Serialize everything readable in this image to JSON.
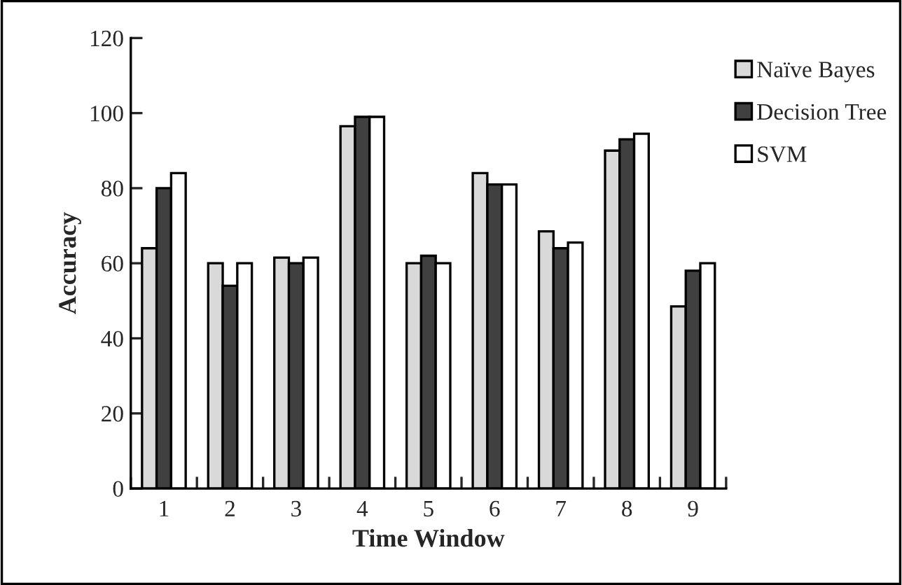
{
  "chart_data": {
    "type": "bar",
    "xlabel": "Time Window",
    "ylabel": "Accuracy",
    "categories": [
      "1",
      "2",
      "3",
      "4",
      "5",
      "6",
      "7",
      "8",
      "9"
    ],
    "series": [
      {
        "name": "Naïve Bayes",
        "color": "#d9d9d9",
        "values": [
          64,
          60,
          61.5,
          96.5,
          60,
          84,
          68.5,
          90,
          48.5
        ]
      },
      {
        "name": "Decision Tree",
        "color": "#404040",
        "values": [
          80,
          54,
          60,
          99,
          62,
          81,
          64,
          93,
          58
        ]
      },
      {
        "name": "SVM",
        "color": "#ffffff",
        "values": [
          84,
          60,
          61.5,
          99,
          60,
          81,
          65.5,
          94.5,
          60
        ]
      }
    ],
    "ylim": [
      0,
      120
    ],
    "yticks": [
      0,
      20,
      40,
      60,
      80,
      100,
      120
    ],
    "grid": false,
    "legend": "top right"
  }
}
